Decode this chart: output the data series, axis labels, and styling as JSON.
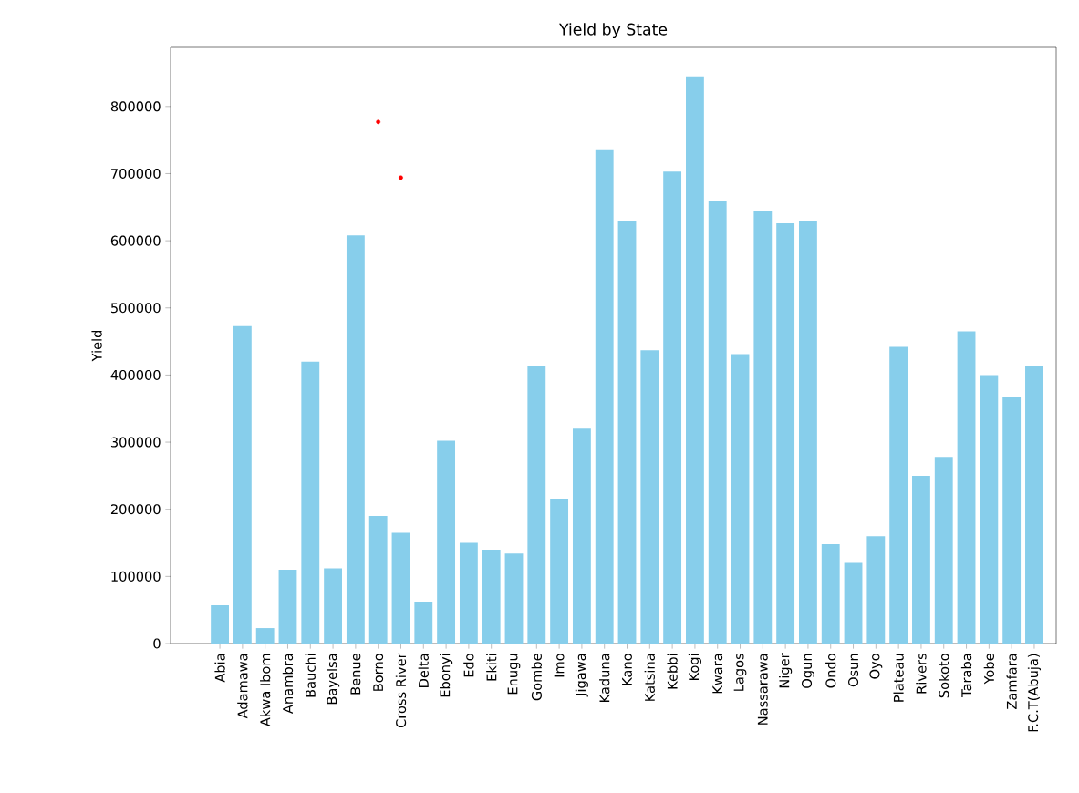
{
  "chart_data": {
    "type": "bar",
    "title": "Yield by State",
    "ylabel": "Yield",
    "categories": [
      "Abia",
      "Adamawa",
      "Akwa Ibom",
      "Anambra",
      "Bauchi",
      "Bayelsa",
      "Benue",
      "Borno",
      "Cross River",
      "Delta",
      "Ebonyi",
      "Edo",
      "Ekiti",
      "Enugu",
      "Gombe",
      "Imo",
      "Jigawa",
      "Kaduna",
      "Kano",
      "Katsina",
      "Kebbi",
      "Kogi",
      "Kwara",
      "Lagos",
      "Nassarawa",
      "Niger",
      "Ogun",
      "Ondo",
      "Osun",
      "Oyo",
      "Plateau",
      "Rivers",
      "Sokoto",
      "Taraba",
      "Yobe",
      "Zamfara",
      "F.C.T(Abuja)"
    ],
    "series": [
      {
        "color": "#87ceeb",
        "values": [
          57000,
          473000,
          23000,
          110000,
          420000,
          112000,
          608000,
          190000,
          165000,
          62000,
          302000,
          150000,
          140000,
          134000,
          414000,
          216000,
          320000,
          735000,
          630000,
          437000,
          703000,
          845000,
          660000,
          431000,
          645000,
          626000,
          629000,
          148000,
          120000,
          160000,
          442000,
          250000,
          278000,
          465000,
          400000,
          367000,
          414000
        ]
      },
      {
        "type": "scatter",
        "color": "#ff0000",
        "marker": "circle",
        "x": [
          "Borno",
          "Cross River"
        ],
        "values": [
          777000,
          694000
        ]
      }
    ],
    "ylim": [
      0,
      888000
    ],
    "yticks": [
      0,
      100000,
      200000,
      300000,
      400000,
      500000,
      600000,
      700000,
      800000
    ],
    "grid": false
  }
}
